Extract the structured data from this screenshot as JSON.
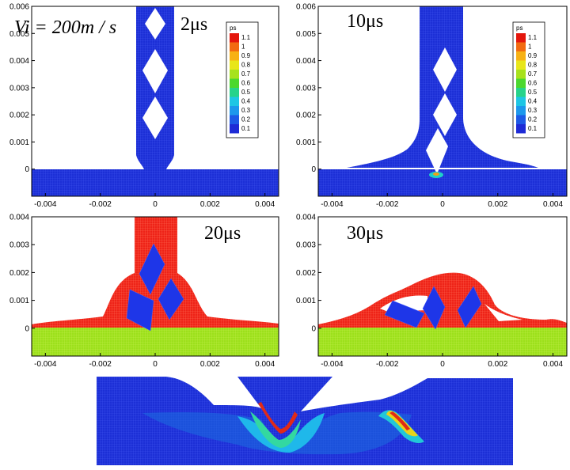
{
  "chart_data": [
    {
      "type": "scatter",
      "panel": "2us",
      "time_label": "2μs",
      "velocity_label": "Vi = 200m / s",
      "xlim": [
        -0.0045,
        0.0045
      ],
      "ylim": [
        -0.001,
        0.006
      ],
      "xticks": [
        "-0.004",
        "-0.002",
        "0",
        "0.002",
        "0.004"
      ],
      "yticks": [
        "0",
        "0.001",
        "0.002",
        "0.003",
        "0.004",
        "0.005",
        "0.006"
      ],
      "legend": {
        "title": "ps",
        "labels": [
          "1.1",
          "1",
          "0.9",
          "0.8",
          "0.7",
          "0.6",
          "0.5",
          "0.4",
          "0.3",
          "0.2",
          "0.1"
        ]
      }
    },
    {
      "type": "scatter",
      "panel": "10us",
      "time_label": "10μs",
      "xlim": [
        -0.0045,
        0.0045
      ],
      "ylim": [
        -0.001,
        0.006
      ],
      "xticks": [
        "-0.004",
        "-0.002",
        "0",
        "0.002",
        "0.004"
      ],
      "yticks": [
        "0",
        "0.001",
        "0.002",
        "0.003",
        "0.004",
        "0.005",
        "0.006"
      ],
      "legend": {
        "title": "ps",
        "labels": [
          "1.1",
          "1",
          "0.9",
          "0.8",
          "0.7",
          "0.6",
          "0.5",
          "0.4",
          "0.3",
          "0.2",
          "0.1"
        ]
      }
    },
    {
      "type": "scatter",
      "panel": "20us",
      "time_label": "20μs",
      "xlim": [
        -0.0045,
        0.0045
      ],
      "ylim": [
        -0.001,
        0.004
      ],
      "xticks": [
        "-0.004",
        "-0.002",
        "0",
        "0.002",
        "0.004"
      ],
      "yticks": [
        "0",
        "0.001",
        "0.002",
        "0.003",
        "0.004"
      ]
    },
    {
      "type": "scatter",
      "panel": "30us",
      "time_label": "30μs",
      "xlim": [
        -0.0045,
        0.0045
      ],
      "ylim": [
        -0.001,
        0.004
      ],
      "xticks": [
        "-0.004",
        "-0.002",
        "0",
        "0.002",
        "0.004"
      ],
      "yticks": [
        "0",
        "0.001",
        "0.002",
        "0.003",
        "0.004"
      ]
    },
    {
      "type": "heatmap",
      "panel": "zoomed-crater"
    }
  ],
  "colors": {
    "particle_blue": "#1a2ed8",
    "plastic_red": "#f0221a",
    "ground_green": "#9be21c",
    "scale": [
      "#e4160c",
      "#f26a10",
      "#f7b114",
      "#e8e61a",
      "#a7e21c",
      "#4bd82e",
      "#26d38a",
      "#1ec6e4",
      "#1d98ec",
      "#1d5ae6",
      "#1e2bd6"
    ]
  }
}
